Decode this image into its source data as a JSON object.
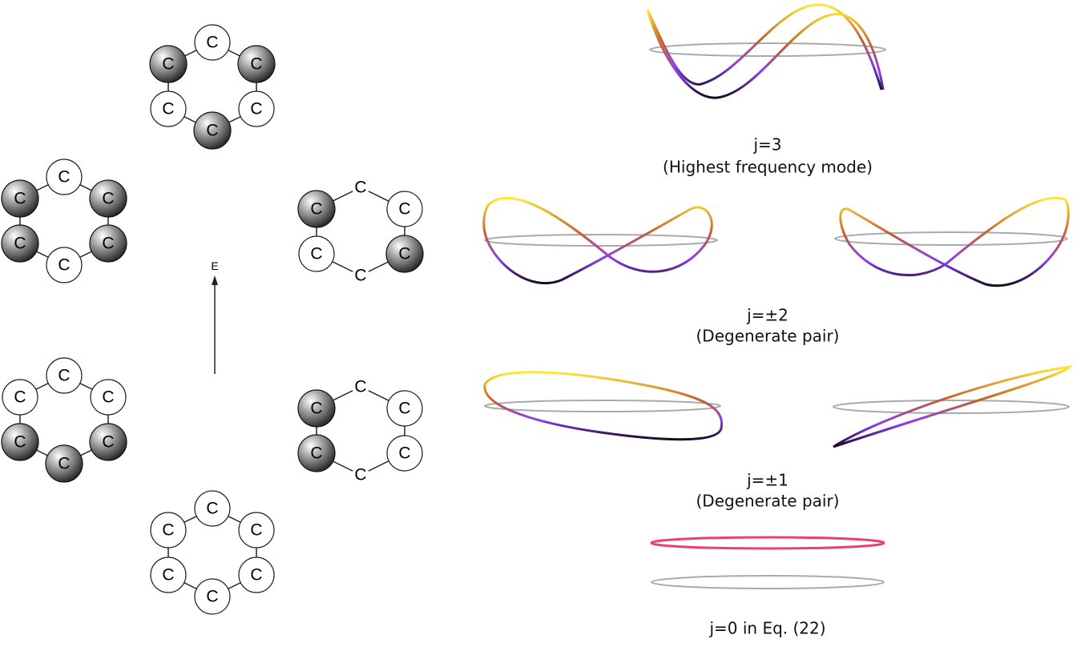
{
  "rings": [
    {
      "atoms": [
        {
          "label": "C",
          "style": "open"
        },
        {
          "label": "C",
          "style": "shaded"
        },
        {
          "label": "C",
          "style": "open"
        },
        {
          "label": "C",
          "style": "shaded"
        },
        {
          "label": "C",
          "style": "open"
        },
        {
          "label": "C",
          "style": "shaded"
        }
      ]
    },
    {
      "atoms": [
        {
          "label": "C",
          "style": "open"
        },
        {
          "label": "C",
          "style": "shaded"
        },
        {
          "label": "C",
          "style": "shaded"
        },
        {
          "label": "C",
          "style": "open"
        },
        {
          "label": "C",
          "style": "shaded"
        },
        {
          "label": "C",
          "style": "shaded"
        }
      ]
    },
    {
      "atoms": [
        {
          "label": "C",
          "style": "plain"
        },
        {
          "label": "C",
          "style": "open"
        },
        {
          "label": "C",
          "style": "shaded"
        },
        {
          "label": "C",
          "style": "plain"
        },
        {
          "label": "C",
          "style": "open"
        },
        {
          "label": "C",
          "style": "shaded"
        }
      ]
    },
    {
      "atoms": [
        {
          "label": "C",
          "style": "open"
        },
        {
          "label": "C",
          "style": "open"
        },
        {
          "label": "C",
          "style": "shaded"
        },
        {
          "label": "C",
          "style": "shaded"
        },
        {
          "label": "C",
          "style": "shaded"
        },
        {
          "label": "C",
          "style": "open"
        }
      ]
    },
    {
      "atoms": [
        {
          "label": "C",
          "style": "plain"
        },
        {
          "label": "C",
          "style": "open"
        },
        {
          "label": "C",
          "style": "open"
        },
        {
          "label": "C",
          "style": "plain"
        },
        {
          "label": "C",
          "style": "shaded"
        },
        {
          "label": "C",
          "style": "shaded"
        }
      ]
    },
    {
      "atoms": [
        {
          "label": "C",
          "style": "open"
        },
        {
          "label": "C",
          "style": "open"
        },
        {
          "label": "C",
          "style": "open"
        },
        {
          "label": "C",
          "style": "open"
        },
        {
          "label": "C",
          "style": "open"
        },
        {
          "label": "C",
          "style": "open"
        }
      ]
    }
  ],
  "energy_axis": {
    "label": "E"
  },
  "modes": [
    {
      "j": "j=3",
      "caption": "(Highest frequency mode)"
    },
    {
      "j": "j=±2",
      "caption": "(Degenerate pair)"
    },
    {
      "j": "j=±1",
      "caption": "(Degenerate pair)"
    },
    {
      "j": "j=0 in Eq. (22)"
    }
  ]
}
